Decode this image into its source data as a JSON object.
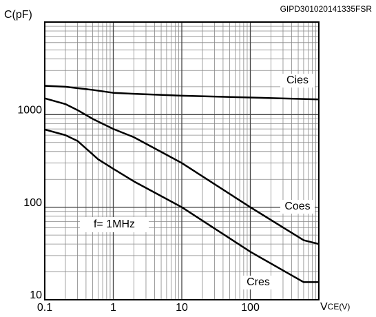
{
  "chart_data": {
    "type": "line",
    "code": "GIPD301020141335FSR",
    "y_label": "C(pF)",
    "x_label": [
      "V",
      "CE(V)"
    ],
    "log_x": true,
    "log_y": true,
    "grid": true,
    "xlim": [
      0.1,
      1000
    ],
    "xticks": [
      0.1,
      1,
      10,
      100
    ],
    "ylim": [
      10,
      10000
    ],
    "yticks": [
      10,
      100,
      1000
    ],
    "annotation": "f= 1MHz",
    "series": [
      {
        "name": "Cies",
        "color": "#000000",
        "x": [
          0.1,
          0.2,
          0.5,
          1,
          2,
          10,
          100,
          1000
        ],
        "values": [
          2050,
          2000,
          1850,
          1720,
          1680,
          1600,
          1530,
          1460
        ]
      },
      {
        "name": "Coes",
        "color": "#000000",
        "x": [
          0.1,
          0.2,
          0.3,
          0.5,
          1,
          2,
          10,
          100,
          600,
          1000
        ],
        "values": [
          1500,
          1300,
          1120,
          900,
          700,
          570,
          300,
          100,
          44,
          40
        ]
      },
      {
        "name": "Cres",
        "color": "#000000",
        "x": [
          0.1,
          0.2,
          0.3,
          0.6,
          1,
          2,
          10,
          100,
          600,
          1000
        ],
        "values": [
          690,
          600,
          520,
          330,
          260,
          190,
          100,
          33,
          15.5,
          15.5
        ]
      }
    ]
  }
}
